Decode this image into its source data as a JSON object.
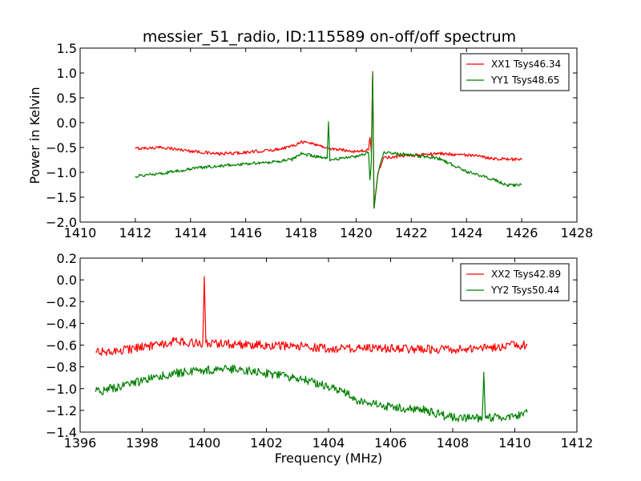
{
  "figure": {
    "title": "messier_51_radio, ID:115589 on-off/off spectrum"
  },
  "chart_data": [
    {
      "type": "line",
      "xlabel": "",
      "ylabel": "Power in Kelvin",
      "xlim": [
        1410,
        1428
      ],
      "ylim": [
        -2.0,
        1.5
      ],
      "xticks": [
        "1410",
        "1412",
        "1414",
        "1416",
        "1418",
        "1420",
        "1422",
        "1424",
        "1426",
        "1428"
      ],
      "yticks": [
        "−2.0",
        "−1.5",
        "−1.0",
        "−0.5",
        "0.0",
        "0.5",
        "1.0",
        "1.5"
      ],
      "legend_position": "top-right",
      "grid": false,
      "series": [
        {
          "name": "XX1 Tsys46.34",
          "color": "#ff0000",
          "noise": 0.02,
          "points": [
            [
              1412.0,
              -0.52
            ],
            [
              1413.0,
              -0.5
            ],
            [
              1414.0,
              -0.57
            ],
            [
              1415.0,
              -0.63
            ],
            [
              1416.0,
              -0.6
            ],
            [
              1417.0,
              -0.55
            ],
            [
              1417.7,
              -0.47
            ],
            [
              1418.0,
              -0.38
            ],
            [
              1418.5,
              -0.43
            ],
            [
              1419.0,
              -0.52
            ],
            [
              1420.0,
              -0.58
            ],
            [
              1420.45,
              -0.55
            ],
            [
              1420.5,
              -0.3
            ],
            [
              1420.55,
              -0.6
            ],
            [
              1420.6,
              1.03
            ],
            [
              1420.65,
              -1.72
            ],
            [
              1420.8,
              -1.0
            ],
            [
              1421.0,
              -0.7
            ],
            [
              1422.0,
              -0.66
            ],
            [
              1423.0,
              -0.62
            ],
            [
              1424.0,
              -0.65
            ],
            [
              1425.0,
              -0.72
            ],
            [
              1426.0,
              -0.75
            ]
          ]
        },
        {
          "name": "YY1 Tsys48.65",
          "color": "#008000",
          "noise": 0.02,
          "points": [
            [
              1412.0,
              -1.08
            ],
            [
              1413.0,
              -1.02
            ],
            [
              1414.0,
              -0.93
            ],
            [
              1415.0,
              -0.87
            ],
            [
              1416.0,
              -0.83
            ],
            [
              1417.0,
              -0.79
            ],
            [
              1417.7,
              -0.74
            ],
            [
              1418.0,
              -0.62
            ],
            [
              1418.5,
              -0.68
            ],
            [
              1418.95,
              -0.72
            ],
            [
              1419.0,
              0.02
            ],
            [
              1419.05,
              -0.75
            ],
            [
              1420.0,
              -0.68
            ],
            [
              1420.45,
              -0.6
            ],
            [
              1420.5,
              -1.15
            ],
            [
              1420.55,
              -0.8
            ],
            [
              1420.6,
              1.0
            ],
            [
              1420.65,
              -1.72
            ],
            [
              1420.8,
              -1.0
            ],
            [
              1421.0,
              -0.6
            ],
            [
              1422.0,
              -0.65
            ],
            [
              1423.0,
              -0.72
            ],
            [
              1423.5,
              -0.85
            ],
            [
              1424.0,
              -0.98
            ],
            [
              1425.0,
              -1.15
            ],
            [
              1425.5,
              -1.26
            ],
            [
              1426.0,
              -1.25
            ]
          ]
        }
      ]
    },
    {
      "type": "line",
      "xlabel": "Frequency (MHz)",
      "ylabel": "",
      "xlim": [
        1396,
        1412
      ],
      "ylim": [
        -1.4,
        0.2
      ],
      "xticks": [
        "1396",
        "1398",
        "1400",
        "1402",
        "1404",
        "1406",
        "1408",
        "1410",
        "1412"
      ],
      "yticks": [
        "−1.4",
        "−1.2",
        "−1.0",
        "−0.8",
        "−0.6",
        "−0.4",
        "−0.2",
        "0.0",
        "0.2"
      ],
      "legend_position": "top-right",
      "grid": false,
      "series": [
        {
          "name": "XX2 Tsys42.89",
          "color": "#ff0000",
          "noise": 0.025,
          "points": [
            [
              1396.5,
              -0.66
            ],
            [
              1397.0,
              -0.66
            ],
            [
              1398.0,
              -0.62
            ],
            [
              1399.0,
              -0.57
            ],
            [
              1399.95,
              -0.58
            ],
            [
              1400.0,
              0.03
            ],
            [
              1400.05,
              -0.58
            ],
            [
              1401.0,
              -0.59
            ],
            [
              1402.0,
              -0.6
            ],
            [
              1403.0,
              -0.61
            ],
            [
              1404.0,
              -0.63
            ],
            [
              1405.0,
              -0.63
            ],
            [
              1406.0,
              -0.63
            ],
            [
              1407.0,
              -0.64
            ],
            [
              1408.0,
              -0.64
            ],
            [
              1409.0,
              -0.63
            ],
            [
              1410.0,
              -0.6
            ],
            [
              1410.4,
              -0.6
            ]
          ]
        },
        {
          "name": "YY2 Tsys50.44",
          "color": "#008000",
          "noise": 0.025,
          "points": [
            [
              1396.5,
              -1.03
            ],
            [
              1397.0,
              -1.0
            ],
            [
              1398.0,
              -0.93
            ],
            [
              1399.0,
              -0.86
            ],
            [
              1400.0,
              -0.83
            ],
            [
              1401.0,
              -0.82
            ],
            [
              1402.0,
              -0.86
            ],
            [
              1403.0,
              -0.9
            ],
            [
              1404.0,
              -0.98
            ],
            [
              1404.6,
              -1.04
            ],
            [
              1405.0,
              -1.12
            ],
            [
              1406.0,
              -1.17
            ],
            [
              1407.0,
              -1.19
            ],
            [
              1408.0,
              -1.27
            ],
            [
              1408.95,
              -1.27
            ],
            [
              1409.0,
              -0.85
            ],
            [
              1409.05,
              -1.27
            ],
            [
              1410.0,
              -1.25
            ],
            [
              1410.4,
              -1.22
            ]
          ]
        }
      ]
    }
  ]
}
